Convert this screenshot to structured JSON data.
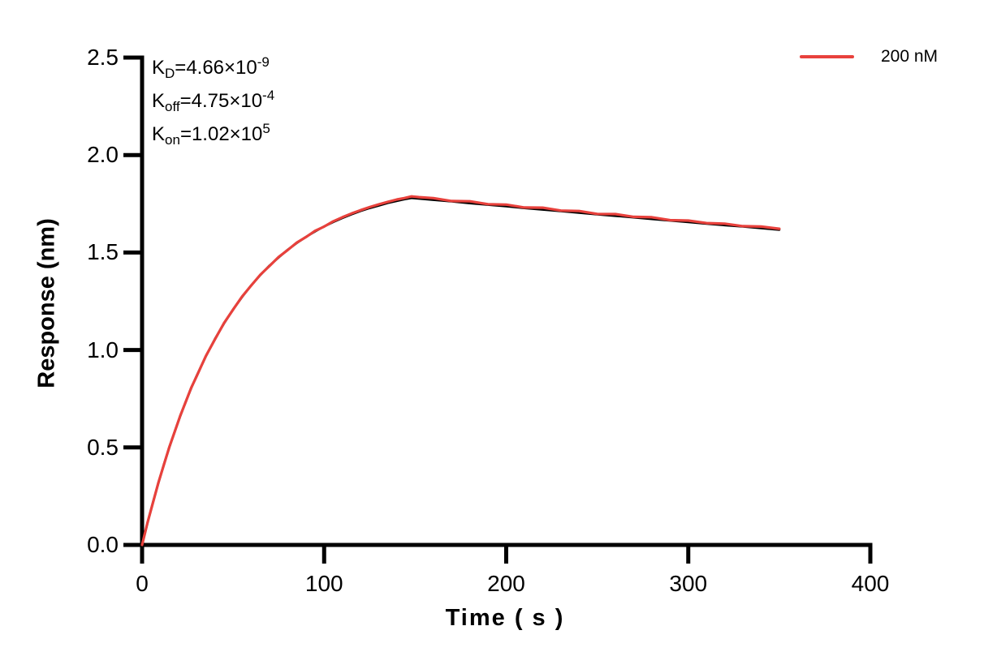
{
  "chart_data": {
    "type": "line",
    "title": "",
    "xlabel": "Time ( s )",
    "ylabel": "Response (nm)",
    "xlim": [
      0,
      400
    ],
    "ylim": [
      0,
      2.5
    ],
    "xticks": [
      0,
      100,
      200,
      300,
      400
    ],
    "x_tick_labels": [
      "0",
      "100",
      "200",
      "300",
      "400"
    ],
    "yticks": [
      0,
      0.5,
      1,
      1.5,
      2,
      2.5
    ],
    "y_tick_labels": [
      "0.0",
      "0.5",
      "1.0",
      "1.5",
      "2.0",
      "2.5"
    ],
    "grid": false,
    "axis_color": "#000000",
    "legend": {
      "position": "top-right",
      "entries": [
        {
          "label": "200 nM",
          "color": "#E8413C"
        }
      ]
    },
    "annotations": [
      {
        "k": "K",
        "sub": "D",
        "value": "=4.66×10",
        "exp": "-9"
      },
      {
        "k": "K",
        "sub": "off",
        "value": "=4.75×10",
        "exp": "-4"
      },
      {
        "k": "K",
        "sub": "on",
        "value": "=1.02×10",
        "exp": "5"
      }
    ],
    "series": [
      {
        "name": "fit",
        "color": "#000000",
        "width": 2.8,
        "points": [
          [
            0,
            0
          ],
          [
            3,
            0.113
          ],
          [
            6,
            0.22
          ],
          [
            9,
            0.319
          ],
          [
            12,
            0.413
          ],
          [
            15,
            0.501
          ],
          [
            18,
            0.584
          ],
          [
            21,
            0.662
          ],
          [
            24,
            0.735
          ],
          [
            27,
            0.804
          ],
          [
            30,
            0.868
          ],
          [
            35,
            0.967
          ],
          [
            40,
            1.056
          ],
          [
            45,
            1.136
          ],
          [
            50,
            1.208
          ],
          [
            55,
            1.273
          ],
          [
            60,
            1.332
          ],
          [
            65,
            1.385
          ],
          [
            70,
            1.433
          ],
          [
            75,
            1.475
          ],
          [
            80,
            1.514
          ],
          [
            85,
            1.549
          ],
          [
            90,
            1.58
          ],
          [
            95,
            1.608
          ],
          [
            100,
            1.634
          ],
          [
            105,
            1.657
          ],
          [
            110,
            1.677
          ],
          [
            115,
            1.696
          ],
          [
            120,
            1.713
          ],
          [
            125,
            1.728
          ],
          [
            130,
            1.741
          ],
          [
            135,
            1.754
          ],
          [
            140,
            1.765
          ],
          [
            144,
            1.773
          ],
          [
            148,
            1.78
          ],
          [
            160,
            1.77
          ],
          [
            170,
            1.762
          ],
          [
            180,
            1.753
          ],
          [
            190,
            1.745
          ],
          [
            200,
            1.737
          ],
          [
            210,
            1.728
          ],
          [
            220,
            1.72
          ],
          [
            230,
            1.712
          ],
          [
            240,
            1.704
          ],
          [
            250,
            1.696
          ],
          [
            260,
            1.688
          ],
          [
            270,
            1.68
          ],
          [
            280,
            1.672
          ],
          [
            290,
            1.664
          ],
          [
            300,
            1.656
          ],
          [
            310,
            1.648
          ],
          [
            320,
            1.64
          ],
          [
            330,
            1.633
          ],
          [
            340,
            1.625
          ],
          [
            350,
            1.617
          ]
        ]
      },
      {
        "name": "200 nM",
        "color": "#E8413C",
        "width": 3.2,
        "points": [
          [
            0,
            0
          ],
          [
            3,
            0.115
          ],
          [
            6,
            0.218
          ],
          [
            9,
            0.321
          ],
          [
            12,
            0.412
          ],
          [
            15,
            0.503
          ],
          [
            18,
            0.583
          ],
          [
            21,
            0.664
          ],
          [
            24,
            0.734
          ],
          [
            27,
            0.806
          ],
          [
            30,
            0.866
          ],
          [
            35,
            0.969
          ],
          [
            40,
            1.054
          ],
          [
            45,
            1.138
          ],
          [
            50,
            1.207
          ],
          [
            55,
            1.275
          ],
          [
            60,
            1.331
          ],
          [
            65,
            1.387
          ],
          [
            70,
            1.431
          ],
          [
            75,
            1.477
          ],
          [
            80,
            1.513
          ],
          [
            85,
            1.551
          ],
          [
            90,
            1.579
          ],
          [
            95,
            1.611
          ],
          [
            100,
            1.633
          ],
          [
            105,
            1.66
          ],
          [
            110,
            1.681
          ],
          [
            115,
            1.7
          ],
          [
            120,
            1.717
          ],
          [
            125,
            1.733
          ],
          [
            130,
            1.747
          ],
          [
            135,
            1.76
          ],
          [
            140,
            1.772
          ],
          [
            144,
            1.779
          ],
          [
            148,
            1.788
          ],
          [
            152,
            1.784
          ],
          [
            160,
            1.779
          ],
          [
            170,
            1.764
          ],
          [
            180,
            1.763
          ],
          [
            190,
            1.748
          ],
          [
            200,
            1.746
          ],
          [
            210,
            1.731
          ],
          [
            220,
            1.73
          ],
          [
            230,
            1.715
          ],
          [
            240,
            1.713
          ],
          [
            250,
            1.698
          ],
          [
            260,
            1.697
          ],
          [
            270,
            1.683
          ],
          [
            280,
            1.681
          ],
          [
            290,
            1.666
          ],
          [
            300,
            1.664
          ],
          [
            310,
            1.651
          ],
          [
            320,
            1.648
          ],
          [
            330,
            1.635
          ],
          [
            340,
            1.633
          ],
          [
            350,
            1.622
          ]
        ]
      }
    ]
  }
}
